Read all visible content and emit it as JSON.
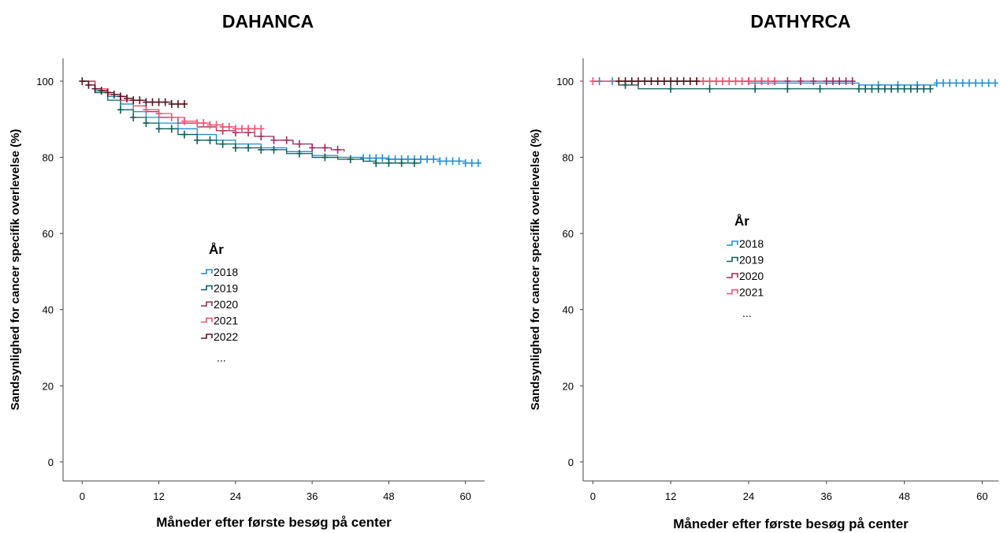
{
  "chart_data": [
    {
      "type": "line",
      "title": "DAHANCA",
      "xlabel": "Måneder efter første besøg på center",
      "ylabel": "Sandsynlighed for cancer specifik overlevelse (%)",
      "xlim": [
        -3,
        63
      ],
      "ylim": [
        -5,
        106
      ],
      "xticks": [
        "0",
        "12",
        "24",
        "36",
        "48",
        "60"
      ],
      "yticks": [
        "0",
        "20",
        "40",
        "60",
        "80",
        "100"
      ],
      "legend": {
        "title": "År",
        "placement": "center-left",
        "entries": [
          "2018",
          "2019",
          "2020",
          "2021",
          "2022"
        ],
        "ellipsis": "..."
      },
      "series": [
        {
          "name": "2018",
          "color": "#1f8fd6",
          "x": [
            0,
            2,
            4,
            6,
            8,
            10,
            12,
            15,
            18,
            21,
            24,
            28,
            32,
            36,
            40,
            44,
            48,
            52,
            56,
            60,
            62
          ],
          "y": [
            100,
            97.5,
            96,
            94,
            92,
            90.5,
            89,
            87.5,
            86,
            84.5,
            83.5,
            82.5,
            81.5,
            80.5,
            80,
            79.8,
            79.5,
            79.5,
            79,
            78.5,
            78.5
          ],
          "censored_x": [
            44,
            45,
            46,
            47,
            48,
            49,
            50,
            51,
            52,
            53,
            54,
            55,
            56,
            57,
            58,
            59,
            60,
            61,
            62
          ]
        },
        {
          "name": "2019",
          "color": "#0a5f5a",
          "x": [
            0,
            2,
            4,
            6,
            8,
            10,
            12,
            15,
            18,
            21,
            24,
            28,
            32,
            36,
            40,
            44,
            46,
            48,
            53
          ],
          "y": [
            100,
            97,
            95,
            92.5,
            90.5,
            89,
            87.5,
            86,
            84.5,
            83.5,
            82.5,
            82,
            81,
            80,
            79.5,
            79,
            78.5,
            78.5,
            78.5
          ],
          "censored_x": [
            6,
            8,
            10,
            12,
            14,
            16,
            18,
            20,
            22,
            24,
            26,
            28,
            30,
            34,
            38,
            42,
            46,
            48,
            50,
            52
          ]
        },
        {
          "name": "2020",
          "color": "#9c2a5c",
          "x": [
            0,
            2,
            4,
            6,
            8,
            10,
            12,
            15,
            18,
            21,
            24,
            27,
            30,
            33,
            36,
            39,
            41
          ],
          "y": [
            100,
            98,
            96.5,
            95,
            93.5,
            92,
            90.5,
            89,
            88,
            87,
            86.5,
            85.5,
            84.5,
            83.5,
            82.5,
            82,
            81.5
          ],
          "censored_x": [
            22,
            24,
            26,
            28,
            30,
            32,
            34,
            36,
            38,
            40
          ]
        },
        {
          "name": "2021",
          "color": "#f0506e",
          "x": [
            0,
            2,
            4,
            6,
            8,
            10,
            12,
            14,
            16,
            18,
            20,
            22,
            24,
            26,
            28
          ],
          "y": [
            100,
            98,
            96.5,
            95,
            93.5,
            92.5,
            91.5,
            90.5,
            89.5,
            89,
            88.5,
            88,
            87.5,
            87.5,
            87.5
          ],
          "censored_x": [
            10,
            12,
            14,
            16,
            18,
            19,
            20,
            21,
            22,
            23,
            24,
            25,
            26,
            27,
            28
          ]
        },
        {
          "name": "2022",
          "color": "#5a1420",
          "x": [
            0,
            1,
            2,
            3,
            4,
            5,
            6,
            7,
            8,
            10,
            12,
            14,
            16
          ],
          "y": [
            100,
            99,
            98,
            97.5,
            97,
            96.5,
            96,
            95.5,
            95,
            94.5,
            94.5,
            94,
            94
          ],
          "censored_x": [
            0,
            1,
            2,
            3,
            4,
            5,
            6,
            7,
            8,
            9,
            10,
            11,
            12,
            13,
            14,
            15,
            16
          ]
        }
      ]
    },
    {
      "type": "line",
      "title": "DATHYRCA",
      "xlabel": "Måneder efter første besøg på center",
      "ylabel": "Sandsynlighed for cancer specifik overlevelse (%)",
      "xlim": [
        -1.5,
        62.5
      ],
      "ylim": [
        -5,
        106
      ],
      "xticks": [
        "0",
        "12",
        "24",
        "36",
        "48",
        "60"
      ],
      "yticks": [
        "0",
        "20",
        "40",
        "60",
        "80",
        "100"
      ],
      "legend": {
        "title": "År",
        "placement": "center-left",
        "entries": [
          "2018",
          "2019",
          "2020",
          "2021"
        ],
        "ellipsis": "..."
      },
      "series": [
        {
          "name": "2018",
          "color": "#1f8fd6",
          "x": [
            0,
            12,
            24,
            36,
            41,
            48,
            53,
            57,
            62
          ],
          "y": [
            100,
            100,
            99.5,
            99.5,
            99,
            99,
            99.5,
            99.5,
            99.5
          ],
          "censored_x": [
            1,
            3,
            44,
            47,
            50,
            53,
            54,
            55,
            56,
            57,
            58,
            59,
            60,
            61,
            62
          ]
        },
        {
          "name": "2019",
          "color": "#0a5f5a",
          "x": [
            0,
            4,
            7,
            12,
            24,
            36,
            41,
            48,
            52
          ],
          "y": [
            100,
            99,
            98,
            98,
            98,
            98,
            98,
            98,
            98
          ],
          "censored_x": [
            5,
            12,
            18,
            25,
            30,
            35,
            41,
            42,
            43,
            44,
            45,
            46,
            47,
            48,
            49,
            50,
            51,
            52
          ]
        },
        {
          "name": "2020",
          "color": "#9c2a5c",
          "x": [
            4,
            12,
            24,
            36,
            40
          ],
          "y": [
            100,
            100,
            100,
            100,
            100
          ],
          "censored_x": [
            24,
            26,
            28,
            30,
            32,
            34,
            36,
            37,
            38,
            39,
            40
          ]
        },
        {
          "name": "2021",
          "color": "#f0506e",
          "x": [
            0,
            12,
            24,
            28
          ],
          "y": [
            100,
            100,
            100,
            100
          ],
          "censored_x": [
            0,
            16,
            17,
            18,
            19,
            20,
            21,
            22,
            23,
            24,
            25,
            26,
            27,
            28
          ]
        },
        {
          "name": "",
          "color": "#5a1420",
          "x": [
            4,
            10,
            16
          ],
          "y": [
            100,
            100,
            100
          ],
          "censored_x": [
            4,
            5,
            6,
            7,
            8,
            9,
            10,
            11,
            12,
            13,
            14,
            15,
            16
          ]
        }
      ]
    }
  ]
}
